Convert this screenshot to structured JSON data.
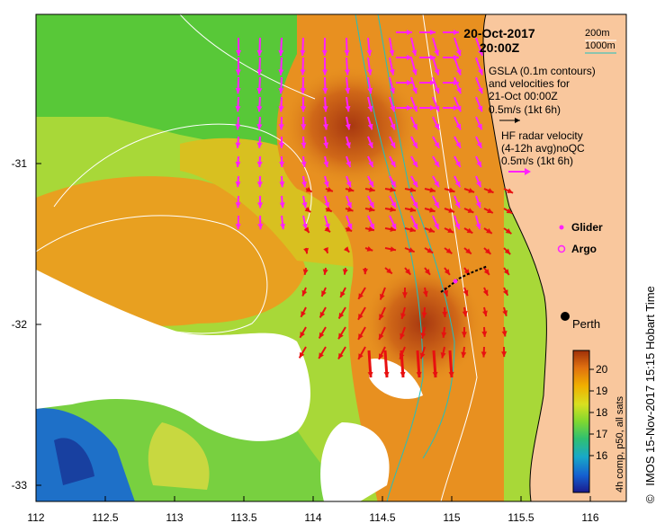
{
  "title": {
    "date": "20-Oct-2017",
    "time": "20:00Z"
  },
  "contour_legend": {
    "shallow": "200m",
    "deep": "1000m"
  },
  "gsla": {
    "line1": "GSLA (0.1m contours)",
    "line2": "and velocities for",
    "line3": "21-Oct 00:00Z",
    "scale": "0.5m/s (1kt 6h)"
  },
  "hf_radar": {
    "line1": "HF radar velocity",
    "line2": "(4-12h avg)noQC",
    "scale": "0.5m/s (1kt 6h)"
  },
  "markers": {
    "glider": "Glider",
    "argo": "Argo"
  },
  "place": {
    "perth": "Perth"
  },
  "axes": {
    "x_ticks": [
      "112",
      "112.5",
      "113",
      "113.5",
      "114",
      "114.5",
      "115",
      "115.5",
      "116"
    ],
    "y_ticks": [
      "-31",
      "-32",
      "-33"
    ]
  },
  "colorbar": {
    "label": "4h comp, p50, all sats",
    "ticks": [
      "20",
      "19",
      "18",
      "17",
      "16"
    ],
    "colors": [
      "#1a1a8c",
      "#1560d0",
      "#18a8c8",
      "#30c070",
      "#80d830",
      "#d8e020",
      "#f0b000",
      "#e07010",
      "#a03008"
    ]
  },
  "credit": "IMOS 15-Nov-2017 15:15 Hobart Time",
  "copyright": "©",
  "colors": {
    "land": "#f9c79d",
    "gsla_arrow": "#ff20ff",
    "hf_arrow": "#e81010",
    "contour_200": "#ffffff",
    "contour_1000": "#20c0c0"
  }
}
